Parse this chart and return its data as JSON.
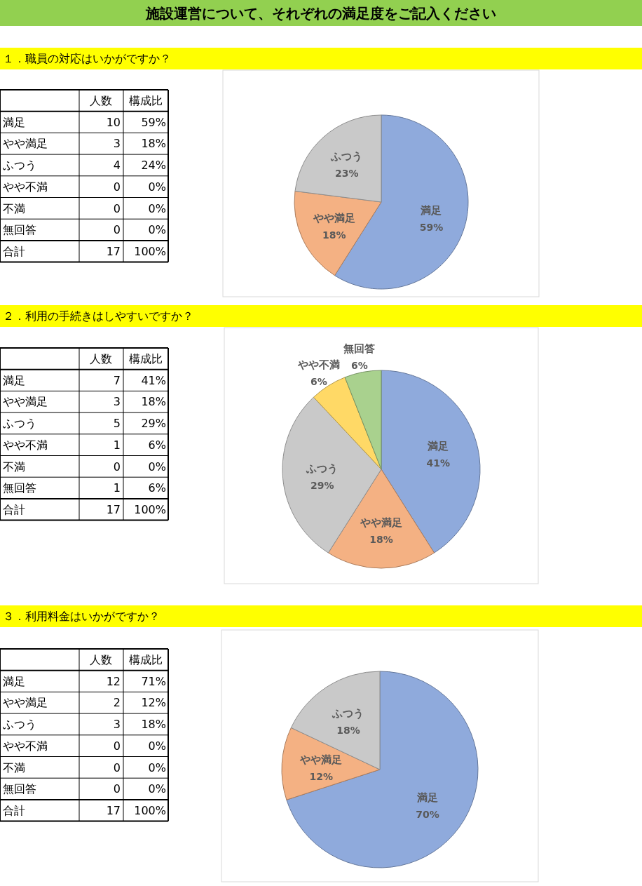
{
  "chart_data": [
    {
      "type": "pie",
      "title": "施設運営について、それぞれの満足度をご記入ください",
      "subtitle": "１．職員の対応はいかがですか？",
      "categories": [
        "満足",
        "やや満足",
        "ふつう",
        "やや不満",
        "不満",
        "無回答"
      ],
      "values": [
        59,
        18,
        23,
        0,
        0,
        0
      ],
      "value_labels": [
        "59%",
        "18%",
        "23%",
        null,
        null,
        null
      ],
      "colors": [
        "#8faadc",
        "#f4b183",
        "#c9c9c9",
        null,
        null,
        null
      ],
      "annotations": [
        "人数",
        "構成比",
        "10",
        "59%",
        "3",
        "18%",
        "4",
        "24%",
        "0",
        "0%",
        "0",
        "0%",
        "0",
        "0%",
        "合計",
        "17",
        "100%"
      ]
    },
    {
      "type": "pie",
      "subtitle": "２．利用の手続きはしやすいですか？",
      "categories": [
        "満足",
        "やや満足",
        "ふつう",
        "やや不満",
        "不満",
        "無回答"
      ],
      "values": [
        41,
        18,
        29,
        6,
        0,
        6
      ],
      "value_labels": [
        "41%",
        "18%",
        "29%",
        "6%",
        null,
        "6%"
      ],
      "colors": [
        "#8faadc",
        "#f4b183",
        "#c9c9c9",
        "#ffd966",
        null,
        "#a9d18e"
      ],
      "annotations": [
        "人数",
        "構成比",
        "7",
        "41%",
        "3",
        "18%",
        "5",
        "29%",
        "1",
        "6%",
        "0",
        "0%",
        "1",
        "6%",
        "合計",
        "17",
        "100%"
      ]
    },
    {
      "type": "pie",
      "subtitle": "３．利用料金はいかがですか？",
      "categories": [
        "満足",
        "やや満足",
        "ふつう",
        "やや不満",
        "不満",
        "無回答"
      ],
      "values": [
        70,
        12,
        18,
        0,
        0,
        0
      ],
      "value_labels": [
        "70%",
        "12%",
        "18%",
        null,
        null,
        null
      ],
      "colors": [
        "#8faadc",
        "#f4b183",
        "#c9c9c9",
        null,
        null,
        null
      ],
      "annotations": [
        "人数",
        "構成比",
        "12",
        "71%",
        "2",
        "12%",
        "3",
        "18%",
        "0",
        "0%",
        "0",
        "0%",
        "0",
        "0%",
        "合計",
        "17",
        "100%"
      ]
    }
  ]
}
